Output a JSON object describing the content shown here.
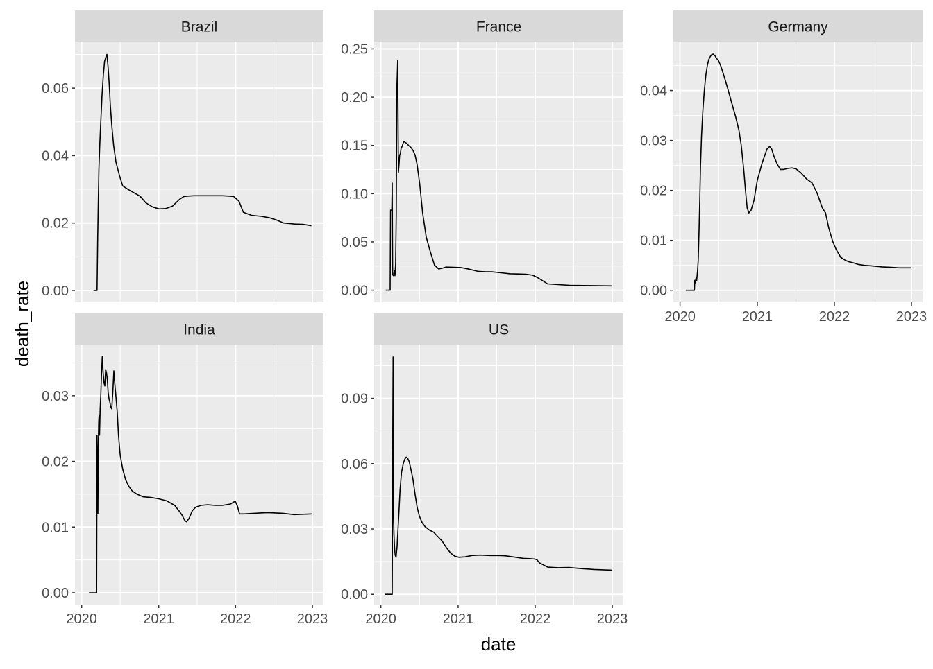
{
  "chart_data": {
    "type": "line",
    "layout": "facet_wrap",
    "xlabel": "date",
    "ylabel": "death_rate",
    "x_ticks": [
      "2020",
      "2021",
      "2022",
      "2023"
    ],
    "x_range": [
      "2020-01-22",
      "2023-01-01"
    ],
    "colors": {
      "panel_bg": "#EBEBEB",
      "strip_bg": "#D9D9D9",
      "grid": "#FFFFFF",
      "line": "#000000",
      "text": "#4D4D4D"
    },
    "panels": [
      {
        "name": "Brazil",
        "ylim": [
          -0.0035,
          0.0738
        ],
        "y_ticks": [
          0.0,
          0.02,
          0.04,
          0.06
        ],
        "y_tick_labels": [
          "0.00",
          "0.02",
          "0.04",
          "0.06"
        ],
        "x": [
          "2020-02-26",
          "2020-03-14",
          "2020-03-17",
          "2020-03-20",
          "2020-03-23",
          "2020-03-27",
          "2020-04-01",
          "2020-04-07",
          "2020-04-13",
          "2020-04-19",
          "2020-04-24",
          "2020-04-30",
          "2020-05-03",
          "2020-05-06",
          "2020-05-11",
          "2020-05-16",
          "2020-05-23",
          "2020-06-01",
          "2020-06-12",
          "2020-06-29",
          "2020-07-14",
          "2020-08-08",
          "2020-09-05",
          "2020-10-04",
          "2020-11-01",
          "2020-12-02",
          "2021-01-03",
          "2021-02-04",
          "2021-03-07",
          "2021-04-10",
          "2021-05-01",
          "2021-05-21",
          "2021-06-18",
          "2021-07-16",
          "2021-09-05",
          "2021-11-02",
          "2021-12-23",
          "2022-01-17",
          "2022-02-07",
          "2022-03-17",
          "2022-05-04",
          "2022-06-09",
          "2022-07-14",
          "2022-08-18",
          "2022-10-11",
          "2022-11-18",
          "2022-12-27"
        ],
        "y": [
          0.0,
          0.0,
          0.015,
          0.026,
          0.036,
          0.043,
          0.05,
          0.058,
          0.064,
          0.068,
          0.069,
          0.07,
          0.068,
          0.066,
          0.061,
          0.055,
          0.049,
          0.043,
          0.038,
          0.034,
          0.031,
          0.03,
          0.029,
          0.028,
          0.026,
          0.0248,
          0.0242,
          0.0243,
          0.025,
          0.027,
          0.0279,
          0.028,
          0.0281,
          0.0281,
          0.0281,
          0.0281,
          0.0279,
          0.0265,
          0.0232,
          0.0223,
          0.022,
          0.0216,
          0.0209,
          0.02,
          0.0197,
          0.0196,
          0.0192
        ]
      },
      {
        "name": "France",
        "ylim": [
          -0.0125,
          0.2575
        ],
        "y_ticks": [
          0.0,
          0.05,
          0.1,
          0.15,
          0.2,
          0.25
        ],
        "y_tick_labels": [
          "0.00",
          "0.05",
          "0.10",
          "0.15",
          "0.20",
          "0.25"
        ],
        "x": [
          "2020-01-24",
          "2020-02-14",
          "2020-02-16",
          "2020-02-22",
          "2020-02-24",
          "2020-02-26",
          "2020-03-01",
          "2020-03-05",
          "2020-03-08",
          "2020-03-11",
          "2020-03-14",
          "2020-03-17",
          "2020-03-21",
          "2020-03-24",
          "2020-03-27",
          "2020-03-30",
          "2020-04-02",
          "2020-04-06",
          "2020-04-11",
          "2020-04-18",
          "2020-04-25",
          "2020-05-04",
          "2020-05-11",
          "2020-05-22",
          "2020-06-01",
          "2020-06-11",
          "2020-06-21",
          "2020-07-03",
          "2020-07-17",
          "2020-08-03",
          "2020-08-22",
          "2020-09-11",
          "2020-10-01",
          "2020-10-21",
          "2020-11-05",
          "2020-12-02",
          "2021-01-14",
          "2021-02-21",
          "2021-04-05",
          "2021-05-12",
          "2021-06-10",
          "2021-07-23",
          "2021-09-05",
          "2021-10-12",
          "2021-11-18",
          "2021-12-21",
          "2022-01-17",
          "2022-03-01",
          "2022-06-14",
          "2022-12-31"
        ],
        "y": [
          0.0,
          0.0,
          0.083,
          0.083,
          0.111,
          0.016,
          0.015,
          0.02,
          0.015,
          0.027,
          0.078,
          0.21,
          0.238,
          0.122,
          0.13,
          0.14,
          0.141,
          0.147,
          0.149,
          0.154,
          0.153,
          0.152,
          0.15,
          0.148,
          0.145,
          0.14,
          0.13,
          0.11,
          0.08,
          0.055,
          0.04,
          0.026,
          0.022,
          0.023,
          0.024,
          0.0238,
          0.0235,
          0.0218,
          0.0195,
          0.019,
          0.019,
          0.018,
          0.017,
          0.0168,
          0.0165,
          0.0155,
          0.0125,
          0.0065,
          0.005,
          0.0045
        ]
      },
      {
        "name": "Germany",
        "ylim": [
          -0.0024,
          0.0498
        ],
        "y_ticks": [
          0.0,
          0.01,
          0.02,
          0.03,
          0.04
        ],
        "y_tick_labels": [
          "0.00",
          "0.01",
          "0.02",
          "0.03",
          "0.04"
        ],
        "x": [
          "2020-01-28",
          "2020-03-09",
          "2020-03-11",
          "2020-03-14",
          "2020-03-17",
          "2020-03-20",
          "2020-03-24",
          "2020-03-27",
          "2020-03-31",
          "2020-04-04",
          "2020-04-07",
          "2020-04-12",
          "2020-04-18",
          "2020-04-25",
          "2020-05-02",
          "2020-05-09",
          "2020-05-16",
          "2020-05-23",
          "2020-05-30",
          "2020-06-06",
          "2020-06-14",
          "2020-06-21",
          "2020-07-01",
          "2020-07-13",
          "2020-07-28",
          "2020-08-13",
          "2020-09-02",
          "2020-09-20",
          "2020-10-06",
          "2020-10-17",
          "2020-10-29",
          "2020-11-06",
          "2020-11-14",
          "2020-11-22",
          "2020-12-02",
          "2020-12-16",
          "2021-01-01",
          "2021-01-24",
          "2021-02-16",
          "2021-02-28",
          "2021-03-10",
          "2021-03-21",
          "2021-04-05",
          "2021-04-20",
          "2021-05-05",
          "2021-05-25",
          "2021-06-14",
          "2021-07-04",
          "2021-07-27",
          "2021-08-22",
          "2021-09-17",
          "2021-10-11",
          "2021-11-05",
          "2021-11-20",
          "2021-12-05",
          "2021-12-24",
          "2022-01-09",
          "2022-01-31",
          "2022-02-22",
          "2022-03-12",
          "2022-04-01",
          "2022-04-23",
          "2022-05-23",
          "2022-06-25",
          "2022-08-14",
          "2022-09-25",
          "2022-11-04",
          "2022-12-31"
        ],
        "y": [
          0.0,
          0.0,
          0.002,
          0.0015,
          0.0025,
          0.002,
          0.004,
          0.006,
          0.012,
          0.019,
          0.025,
          0.031,
          0.036,
          0.04,
          0.043,
          0.045,
          0.0462,
          0.0468,
          0.0472,
          0.0473,
          0.047,
          0.0465,
          0.046,
          0.0448,
          0.0428,
          0.0405,
          0.0375,
          0.0348,
          0.032,
          0.029,
          0.024,
          0.02,
          0.0165,
          0.0155,
          0.016,
          0.018,
          0.022,
          0.0255,
          0.0283,
          0.0288,
          0.0283,
          0.0268,
          0.0253,
          0.0242,
          0.0242,
          0.0244,
          0.0245,
          0.0243,
          0.0235,
          0.0223,
          0.0215,
          0.0195,
          0.0165,
          0.0155,
          0.0125,
          0.0098,
          0.0082,
          0.0066,
          0.006,
          0.0057,
          0.0055,
          0.0052,
          0.005,
          0.0049,
          0.0047,
          0.0046,
          0.0045,
          0.0045
        ]
      },
      {
        "name": "India",
        "ylim": [
          -0.0018,
          0.0378
        ],
        "y_ticks": [
          0.0,
          0.01,
          0.02,
          0.03
        ],
        "y_tick_labels": [
          "0.00",
          "0.01",
          "0.02",
          "0.03"
        ],
        "x": [
          "2020-02-05",
          "2020-03-10",
          "2020-03-12",
          "2020-03-14",
          "2020-03-16",
          "2020-03-18",
          "2020-03-20",
          "2020-03-22",
          "2020-03-24",
          "2020-03-26",
          "2020-03-29",
          "2020-04-01",
          "2020-04-04",
          "2020-04-08",
          "2020-04-12",
          "2020-04-16",
          "2020-04-20",
          "2020-04-24",
          "2020-04-28",
          "2020-05-02",
          "2020-05-06",
          "2020-05-10",
          "2020-05-14",
          "2020-05-18",
          "2020-05-23",
          "2020-05-28",
          "2020-06-02",
          "2020-06-06",
          "2020-06-10",
          "2020-06-14",
          "2020-06-18",
          "2020-06-24",
          "2020-07-02",
          "2020-07-14",
          "2020-07-28",
          "2020-08-12",
          "2020-08-28",
          "2020-09-20",
          "2020-10-20",
          "2020-11-25",
          "2021-01-01",
          "2021-02-08",
          "2021-03-18",
          "2021-04-07",
          "2021-04-22",
          "2021-05-05",
          "2021-05-13",
          "2021-05-25",
          "2021-06-10",
          "2021-06-25",
          "2021-07-20",
          "2021-08-22",
          "2021-09-25",
          "2021-10-30",
          "2021-12-08",
          "2021-12-22",
          "2021-12-31",
          "2022-01-10",
          "2022-01-20",
          "2022-02-10",
          "2022-03-30",
          "2022-06-04",
          "2022-08-14",
          "2022-10-06",
          "2022-12-31"
        ],
        "y": [
          0.0,
          0.0,
          0.0,
          0.024,
          0.019,
          0.012,
          0.022,
          0.026,
          0.027,
          0.024,
          0.028,
          0.03,
          0.033,
          0.036,
          0.0335,
          0.032,
          0.0315,
          0.034,
          0.0335,
          0.0325,
          0.0305,
          0.0295,
          0.029,
          0.0283,
          0.028,
          0.0305,
          0.0338,
          0.032,
          0.0305,
          0.029,
          0.0275,
          0.024,
          0.021,
          0.0188,
          0.0172,
          0.0162,
          0.0155,
          0.015,
          0.0146,
          0.0145,
          0.0143,
          0.014,
          0.0133,
          0.0125,
          0.0118,
          0.011,
          0.0108,
          0.0113,
          0.0125,
          0.013,
          0.0133,
          0.0134,
          0.0133,
          0.0133,
          0.0135,
          0.0138,
          0.0139,
          0.0132,
          0.012,
          0.012,
          0.0121,
          0.0122,
          0.0121,
          0.0119,
          0.012
        ]
      },
      {
        "name": "US",
        "ylim": [
          -0.0047,
          0.1147
        ],
        "y_ticks": [
          0.0,
          0.03,
          0.06,
          0.09
        ],
        "y_tick_labels": [
          "0.00",
          "0.03",
          "0.06",
          "0.09"
        ],
        "x": [
          "2020-01-22",
          "2020-02-24",
          "2020-02-26",
          "2020-02-28",
          "2020-02-29",
          "2020-03-01",
          "2020-03-03",
          "2020-03-06",
          "2020-03-09",
          "2020-03-13",
          "2020-03-18",
          "2020-03-25",
          "2020-04-01",
          "2020-04-08",
          "2020-04-16",
          "2020-04-23",
          "2020-04-30",
          "2020-05-07",
          "2020-05-14",
          "2020-05-21",
          "2020-06-01",
          "2020-06-11",
          "2020-06-21",
          "2020-07-01",
          "2020-07-14",
          "2020-07-29",
          "2020-08-18",
          "2020-09-07",
          "2020-09-27",
          "2020-10-17",
          "2020-11-06",
          "2020-11-26",
          "2020-12-16",
          "2021-01-05",
          "2021-02-04",
          "2021-03-06",
          "2021-04-15",
          "2021-05-30",
          "2021-07-09",
          "2021-08-08",
          "2021-09-17",
          "2021-11-06",
          "2021-12-16",
          "2021-12-30",
          "2022-01-10",
          "2022-01-20",
          "2022-03-01",
          "2022-04-20",
          "2022-06-09",
          "2022-08-08",
          "2022-10-07",
          "2022-12-31"
        ],
        "y": [
          0.0,
          0.0,
          0.06,
          0.109,
          0.095,
          0.035,
          0.028,
          0.021,
          0.018,
          0.017,
          0.022,
          0.035,
          0.048,
          0.056,
          0.06,
          0.062,
          0.063,
          0.0625,
          0.061,
          0.058,
          0.053,
          0.046,
          0.04,
          0.036,
          0.033,
          0.031,
          0.0295,
          0.0285,
          0.0265,
          0.0245,
          0.0215,
          0.019,
          0.0175,
          0.017,
          0.0172,
          0.0178,
          0.018,
          0.0178,
          0.0178,
          0.0177,
          0.0172,
          0.0165,
          0.0163,
          0.0162,
          0.0158,
          0.0145,
          0.0125,
          0.0122,
          0.0123,
          0.0118,
          0.0114,
          0.0111
        ]
      }
    ]
  }
}
